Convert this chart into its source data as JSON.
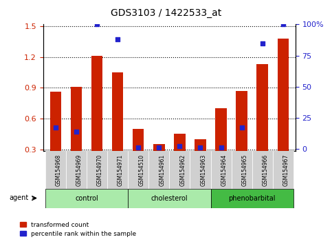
{
  "title": "GDS3103 / 1422533_at",
  "samples": [
    "GSM154968",
    "GSM154969",
    "GSM154970",
    "GSM154971",
    "GSM154510",
    "GSM154961",
    "GSM154962",
    "GSM154963",
    "GSM154964",
    "GSM154965",
    "GSM154966",
    "GSM154967"
  ],
  "red_values": [
    0.86,
    0.91,
    1.21,
    1.05,
    0.5,
    0.35,
    0.45,
    0.4,
    0.7,
    0.87,
    1.13,
    1.38
  ],
  "blue_pct": [
    17,
    14,
    100,
    88,
    1,
    1,
    2,
    1,
    1,
    17,
    85,
    100
  ],
  "ylim_left": [
    0.28,
    1.52
  ],
  "ylim_right": [
    -1.867,
    100
  ],
  "yticks_left": [
    0.3,
    0.6,
    0.9,
    1.2,
    1.5
  ],
  "yticks_right": [
    0,
    25,
    50,
    75,
    100
  ],
  "ytick_labels_right": [
    "0",
    "25",
    "50",
    "75",
    "100%"
  ],
  "bar_color": "#cc2200",
  "blue_color": "#2222cc",
  "bar_width": 0.55,
  "group_colors": [
    "#aaeaaa",
    "#aaeaaa",
    "#44bb44"
  ],
  "group_labels": [
    "control",
    "cholesterol",
    "phenobarbital"
  ],
  "group_ranges": [
    [
      0,
      3
    ],
    [
      4,
      7
    ],
    [
      8,
      11
    ]
  ],
  "agent_label": "agent",
  "legend_items": [
    {
      "color": "#cc2200",
      "label": "transformed count"
    },
    {
      "color": "#2222cc",
      "label": "percentile rank within the sample"
    }
  ]
}
